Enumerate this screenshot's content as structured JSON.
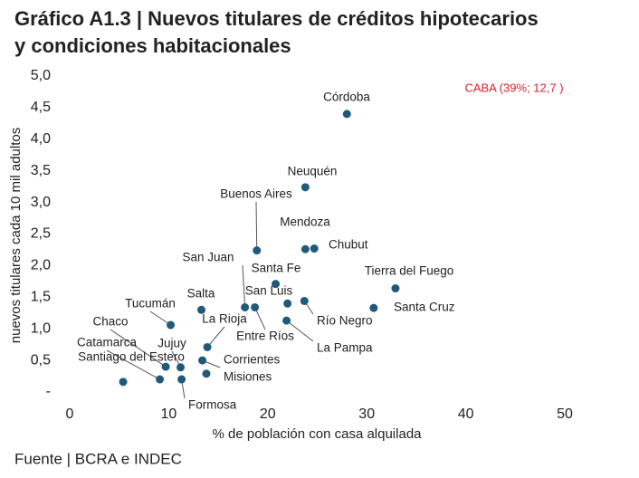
{
  "chart_data": {
    "type": "scatter",
    "title": "Gráfico A1.3 | Nuevos titulares de créditos hipotecarios y condiciones habitacionales",
    "x_label": "% de población con casa alquilada",
    "y_label": "nuevos titulares cada 10 mil adultos",
    "source": "Fuente | BCRA e INDEC",
    "annotation": "CABA (39%; 12,7 )",
    "annotation_color": "#e0202a",
    "color": "#1f5a7a",
    "xlim": [
      0,
      50
    ],
    "xticks": [
      0,
      10,
      20,
      30,
      40,
      50
    ],
    "ylim": [
      0,
      5
    ],
    "yticks": [
      {
        "value": 0,
        "label": "-"
      },
      {
        "value": 0.5,
        "label": "0,5"
      },
      {
        "value": 1,
        "label": "1,0"
      },
      {
        "value": 1.5,
        "label": "1,5"
      },
      {
        "value": 2,
        "label": "2,0"
      },
      {
        "value": 2.5,
        "label": "2,5"
      },
      {
        "value": 3,
        "label": "3,0"
      },
      {
        "value": 3.5,
        "label": "3,5"
      },
      {
        "value": 4,
        "label": "4,0"
      },
      {
        "value": 4.5,
        "label": "4,5"
      },
      {
        "value": 5,
        "label": "5,0"
      }
    ],
    "labels": [
      "Córdoba",
      "Neuquén",
      "Buenos Aires",
      "Mendoza",
      "Chubut",
      "Santa Fe",
      "Tierra del Fuego",
      "San Luis",
      "Río Negro",
      "Santa Cruz",
      "San Juan",
      "Entre Ríos",
      "La Pampa",
      "Salta",
      "Tucumán",
      "La Rioja",
      "Corrientes",
      "Jujuy",
      "Chaco",
      "Catamarca",
      "Santiago del Estero",
      "Misiones",
      "Formosa"
    ],
    "x": [
      28.0,
      23.8,
      18.9,
      23.8,
      24.7,
      20.8,
      32.9,
      22.0,
      23.7,
      30.7,
      17.7,
      18.7,
      21.9,
      13.3,
      10.2,
      13.9,
      13.4,
      11.2,
      9.7,
      9.1,
      5.4,
      13.8,
      11.3
    ],
    "values": [
      4.4,
      3.24,
      2.24,
      2.26,
      2.27,
      1.71,
      1.64,
      1.4,
      1.44,
      1.33,
      1.34,
      1.34,
      1.13,
      1.3,
      1.06,
      0.71,
      0.5,
      0.39,
      0.4,
      0.2,
      0.16,
      0.29,
      0.2
    ]
  }
}
